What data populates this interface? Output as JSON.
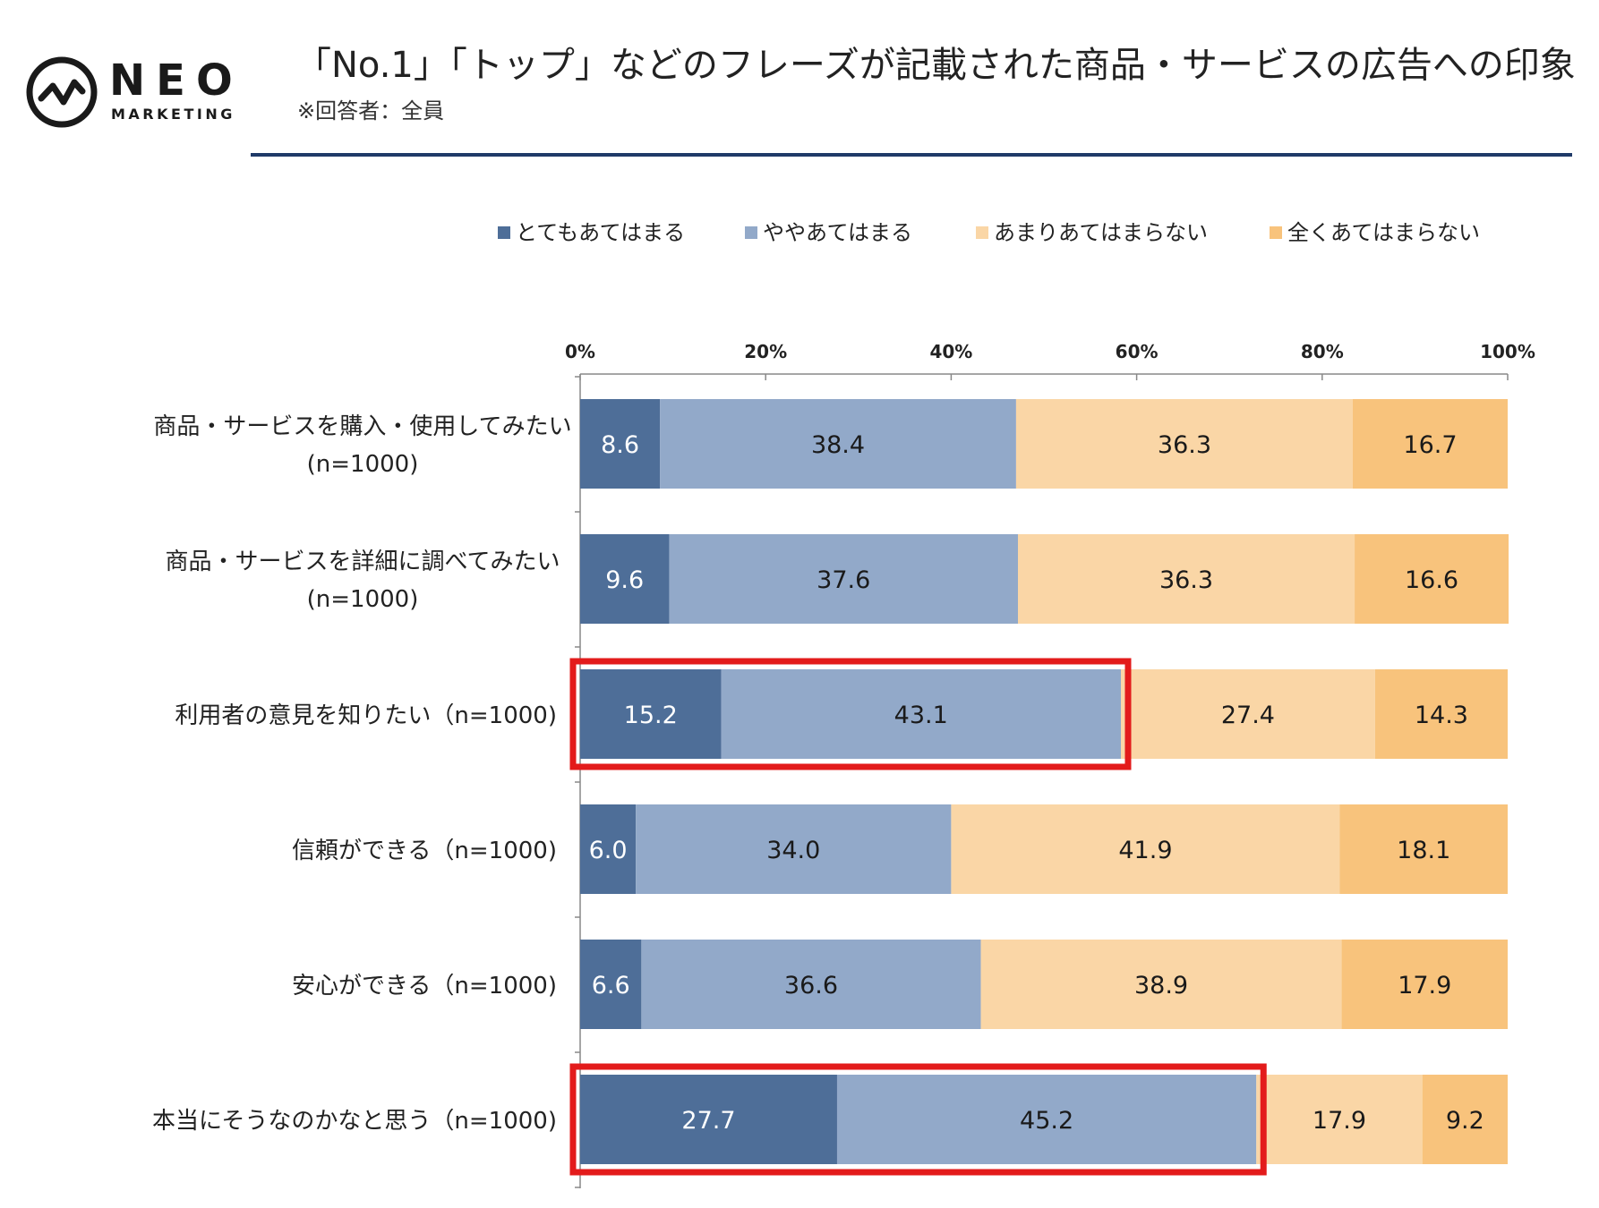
{
  "logo": {
    "wordmark": "NEO",
    "subtext": "MARKETING"
  },
  "header": {
    "title": "「No.1」「トップ」などのフレーズが記載された商品・サービスの広告への印象",
    "subtitle": "※回答者：全員"
  },
  "chart_data": {
    "type": "bar",
    "orientation": "horizontal",
    "stacked": true,
    "xlim": [
      0,
      100
    ],
    "xticks": [
      "0%",
      "20%",
      "40%",
      "60%",
      "80%",
      "100%"
    ],
    "legend_position": "top",
    "categories": [
      [
        "商品・サービスを購入・使用してみたい",
        "(n=1000)"
      ],
      [
        "商品・サービスを詳細に調べてみたい",
        "(n=1000)"
      ],
      [
        "利用者の意見を知りたい（n=1000)"
      ],
      [
        "信頼ができる（n=1000)"
      ],
      [
        "安心ができる（n=1000)"
      ],
      [
        "本当にそうなのかなと思う（n=1000)"
      ]
    ],
    "series": [
      {
        "name": "とてもあてはまる",
        "color": "#4e6e98",
        "label_color": "#ffffff",
        "values": [
          8.6,
          9.6,
          15.2,
          6.0,
          6.6,
          27.7
        ],
        "labels": [
          "8.6",
          "9.6",
          "15.2",
          "6.0",
          "6.6",
          "27.7"
        ]
      },
      {
        "name": "ややあてはまる",
        "color": "#92a9c9",
        "label_color": "#1a1a1a",
        "values": [
          38.4,
          37.6,
          43.1,
          34.0,
          36.6,
          45.2
        ],
        "labels": [
          "38.4",
          "37.6",
          "43.1",
          "34.0",
          "36.6",
          "45.2"
        ]
      },
      {
        "name": "あまりあてはまらない",
        "color": "#fad6a6",
        "label_color": "#1a1a1a",
        "values": [
          36.3,
          36.3,
          27.4,
          41.9,
          38.9,
          17.9
        ],
        "labels": [
          "36.3",
          "36.3",
          "27.4",
          "41.9",
          "38.9",
          "17.9"
        ]
      },
      {
        "name": "全くあてはまらない",
        "color": "#f8c37c",
        "label_color": "#1a1a1a",
        "values": [
          16.7,
          16.6,
          14.3,
          18.1,
          17.9,
          9.2
        ],
        "labels": [
          "16.7",
          "16.6",
          "14.3",
          "18.1",
          "17.9",
          "9.2"
        ]
      }
    ],
    "highlights": [
      {
        "row": 2,
        "series_span": [
          0,
          1
        ],
        "color": "#e31b1b"
      },
      {
        "row": 5,
        "series_span": [
          0,
          1
        ],
        "color": "#e31b1b"
      }
    ]
  }
}
